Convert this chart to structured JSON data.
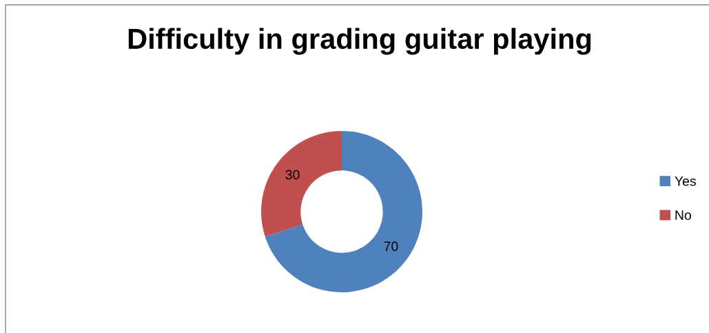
{
  "chart_data": {
    "type": "donut",
    "title": "Difficulty in grading guitar playing",
    "categories": [
      "Yes",
      "No"
    ],
    "values": [
      70,
      30
    ],
    "colors": [
      "#4f81bd",
      "#c0504d"
    ],
    "data_labels": true,
    "legend": "right"
  }
}
